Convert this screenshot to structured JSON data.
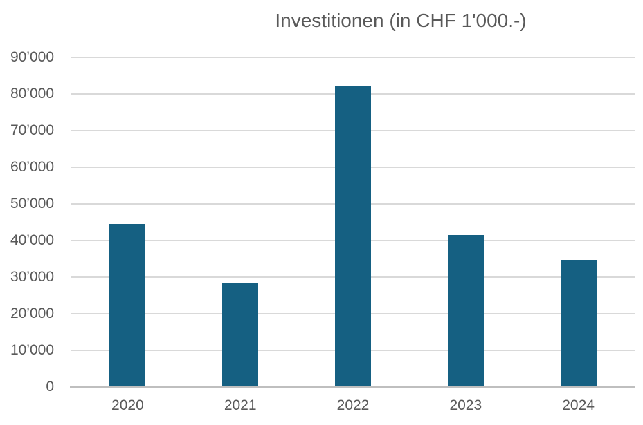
{
  "chart_data": {
    "type": "bar",
    "title": "Investitionen (in CHF 1'000.-)",
    "categories": [
      "2020",
      "2021",
      "2022",
      "2023",
      "2024"
    ],
    "values": [
      44500,
      28300,
      82300,
      41500,
      34800
    ],
    "series_name": "Investitionen",
    "xlabel": "",
    "ylabel": "",
    "ylim": [
      0,
      90000
    ],
    "ytick_step": 10000,
    "ytick_labels": [
      "0",
      "10’000",
      "20’000",
      "30’000",
      "40’000",
      "50’000",
      "60’000",
      "70’000",
      "80’000",
      "90’000"
    ],
    "grid": true,
    "legend": false,
    "colors": {
      "bar": "#156082",
      "text": "#595959",
      "gridline": "#D9D9D9",
      "axis_line": "#BFBFBF",
      "background": "#FFFFFF"
    }
  }
}
